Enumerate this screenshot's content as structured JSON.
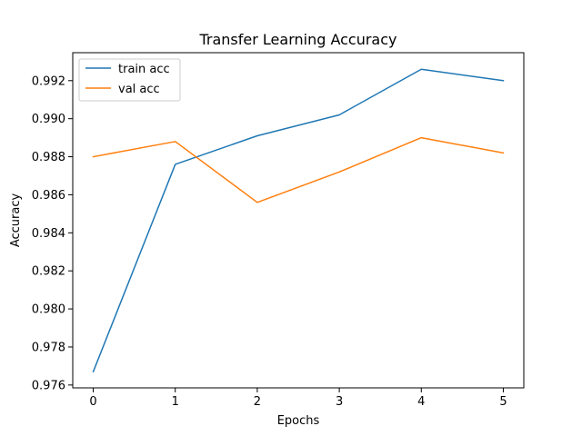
{
  "chart_data": {
    "type": "line",
    "title": "Transfer Learning Accuracy",
    "xlabel": "Epochs",
    "ylabel": "Accuracy",
    "x": [
      0,
      1,
      2,
      3,
      4,
      5
    ],
    "xticks": [
      "0",
      "1",
      "2",
      "3",
      "4",
      "5"
    ],
    "xlim": [
      -0.25,
      5.25
    ],
    "yticks": [
      "0.976",
      "0.978",
      "0.980",
      "0.982",
      "0.984",
      "0.986",
      "0.988",
      "0.990",
      "0.992"
    ],
    "ytick_values": [
      0.976,
      0.978,
      0.98,
      0.982,
      0.984,
      0.986,
      0.988,
      0.99,
      0.992
    ],
    "ylim": [
      0.97585,
      0.99347
    ],
    "grid": false,
    "legend_position": "top-left",
    "series": [
      {
        "name": "train acc",
        "color": "#1f77b4",
        "values": [
          0.9767,
          0.9876,
          0.9891,
          0.9902,
          0.9926,
          0.992
        ]
      },
      {
        "name": "val acc",
        "color": "#ff7f0e",
        "values": [
          0.988,
          0.9888,
          0.9856,
          0.9872,
          0.989,
          0.9882
        ]
      }
    ]
  }
}
